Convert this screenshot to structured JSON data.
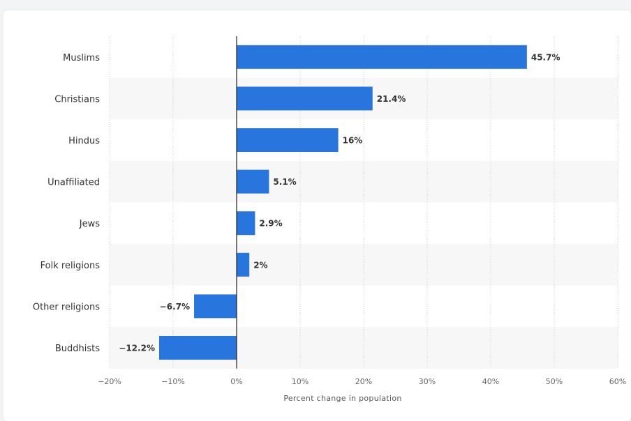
{
  "chart_data": {
    "type": "bar",
    "orientation": "horizontal",
    "categories": [
      "Muslims",
      "Christians",
      "Hindus",
      "Unaffiliated",
      "Jews",
      "Folk religions",
      "Other religions",
      "Buddhists"
    ],
    "values": [
      45.7,
      21.4,
      16,
      5.1,
      2.9,
      2,
      -6.7,
      -12.2
    ],
    "value_labels": [
      "45.7%",
      "21.4%",
      "16%",
      "5.1%",
      "2.9%",
      "2%",
      "−6.7%",
      "−12.2%"
    ],
    "xlabel": "Percent change in population",
    "xlim": [
      -20,
      60
    ],
    "xticks": [
      -20,
      -10,
      0,
      10,
      20,
      30,
      40,
      50,
      60
    ],
    "xtick_labels": [
      "−20%",
      "−10%",
      "0%",
      "10%",
      "20%",
      "30%",
      "40%",
      "50%",
      "60%"
    ],
    "grid": true,
    "bar_color": "#2876dd",
    "band_color": "#f7f7f7",
    "grid_color": "#cccccc"
  }
}
